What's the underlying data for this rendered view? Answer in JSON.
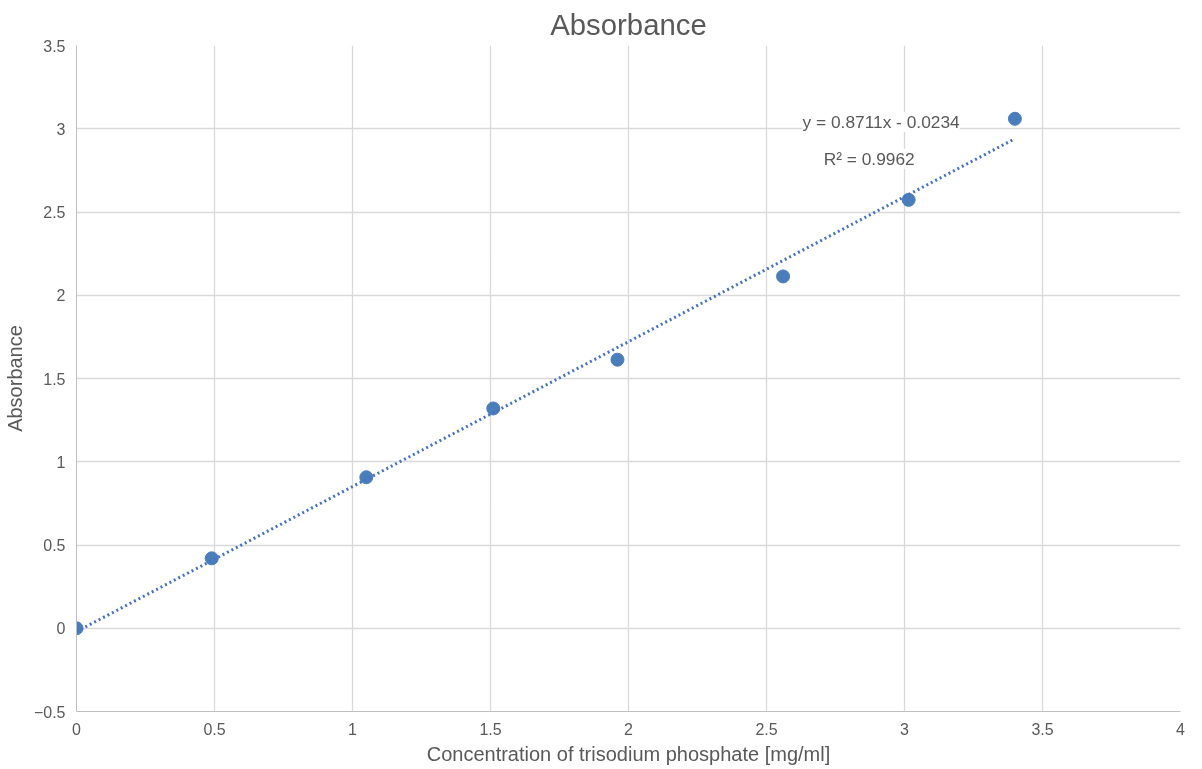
{
  "chart_data": {
    "type": "scatter",
    "title": "Absorbance",
    "xlabel": "Concentration of trisodium phosphate [mg/ml]",
    "ylabel": "Absorbance",
    "xlim": [
      0,
      4
    ],
    "xticks": [
      0,
      0.5,
      1,
      1.5,
      2,
      2.5,
      3,
      3.5,
      4
    ],
    "ylim": [
      -0.5,
      3.5
    ],
    "yticks": [
      -0.5,
      0,
      0.5,
      1,
      1.5,
      2,
      2.5,
      3,
      3.5
    ],
    "grid": true,
    "marker": "circle",
    "series": [
      {
        "color": "#4a7ebb",
        "x": [
          0,
          0.49,
          1.05,
          1.51,
          1.96,
          2.56,
          3.015,
          3.4
        ],
        "values": [
          0,
          0.42,
          0.907,
          1.32,
          1.613,
          2.113,
          2.573,
          3.06
        ]
      },
      {
        "type": "line",
        "marker": "none",
        "color": "#4472c4",
        "line_style": "dotted",
        "x": [
          0,
          3.4
        ],
        "values": [
          -0.02,
          2.94
        ]
      }
    ],
    "annotations": [
      "y = 0.8711x - 0.0234",
      "R² = 0.9962"
    ]
  }
}
